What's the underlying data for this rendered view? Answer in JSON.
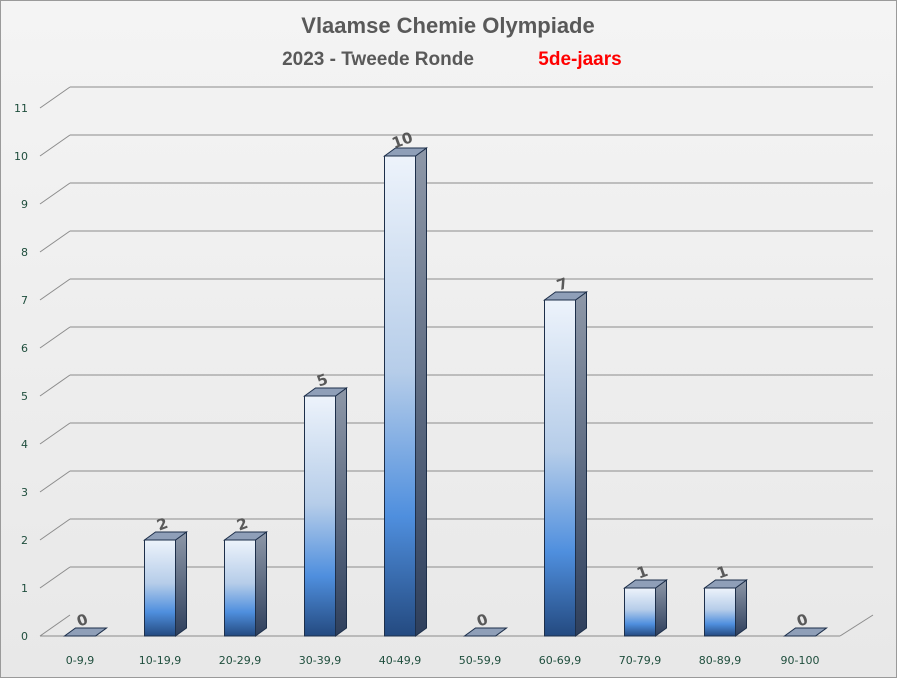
{
  "chart_data": {
    "type": "bar",
    "title": "Vlaamse Chemie Olympiade",
    "subtitle": "2023 - Tweede Ronde",
    "subtitle_highlight": "5de-jaars",
    "categories": [
      "0-9,9",
      "10-19,9",
      "20-29,9",
      "30-39,9",
      "40-49,9",
      "50-59,9",
      "60-69,9",
      "70-79,9",
      "80-89,9",
      "90-100"
    ],
    "values": [
      0,
      2,
      2,
      5,
      10,
      0,
      7,
      1,
      1,
      0
    ],
    "yticks": [
      "0",
      "1",
      "2",
      "3",
      "4",
      "5",
      "6",
      "7",
      "8",
      "9",
      "10",
      "11"
    ],
    "ylim": [
      0,
      11
    ],
    "grid": true,
    "style": "3d-column",
    "colors": {
      "bar_top": "#e9f0fa",
      "bar_mid": "#4f8fde",
      "bar_bottom": "#23487a",
      "subtitle_highlight": "#ff0000",
      "gridline": "#8c8c8c"
    }
  }
}
